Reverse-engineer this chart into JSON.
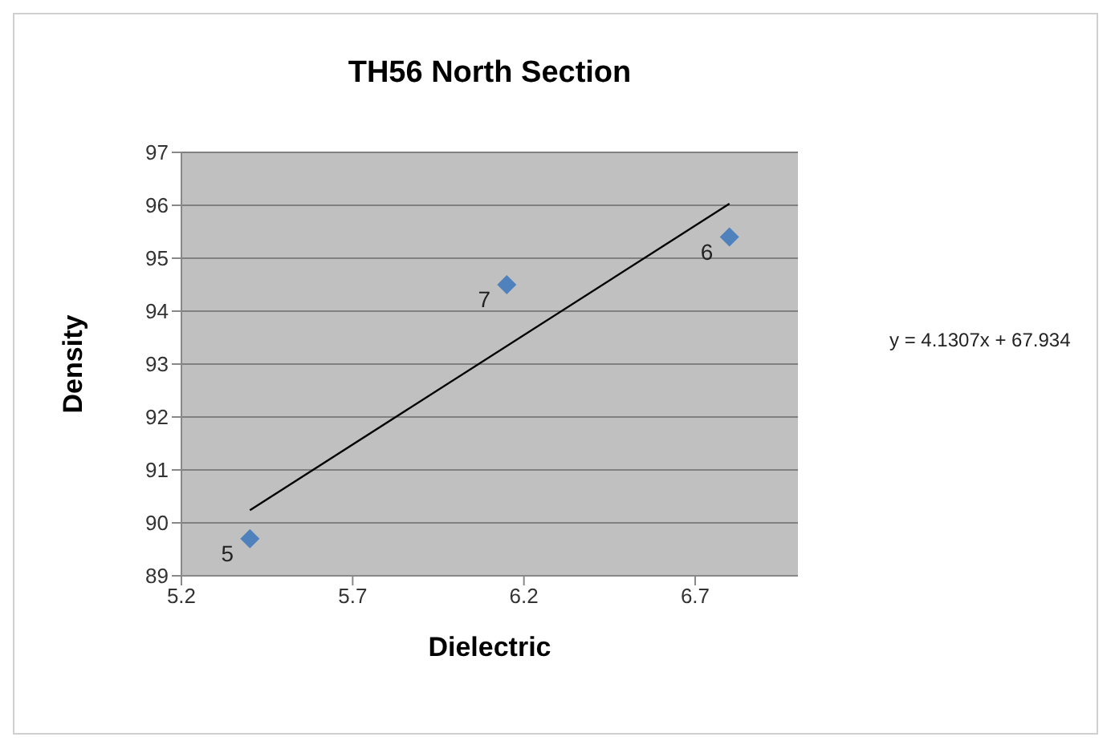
{
  "chart_data": {
    "type": "scatter",
    "title": "TH56 North Section",
    "xlabel": "Dielectric",
    "ylabel": "Density",
    "series": [
      {
        "color": "#4f81bd",
        "x": [
          5.4,
          6.15,
          6.8
        ],
        "values": [
          89.7,
          94.5,
          95.4
        ],
        "marker": "diamond"
      },
      {
        "type": "line",
        "color": "#000000",
        "x": [
          5.4,
          6.8
        ],
        "values": [
          90.24,
          96.03
        ],
        "marker": "none"
      }
    ],
    "xlim": [
      5.2,
      7.0
    ],
    "xticks": [
      5.2,
      5.7,
      6.2,
      6.7
    ],
    "ylim": [
      89,
      97
    ],
    "yticks": [
      89,
      90,
      91,
      92,
      93,
      94,
      95,
      96,
      97
    ],
    "grid": "y",
    "annotations": [
      {
        "text": "5",
        "x": 5.4,
        "y": 89.7
      },
      {
        "text": "7",
        "x": 6.15,
        "y": 94.5
      },
      {
        "text": "6",
        "x": 6.8,
        "y": 95.4
      },
      "y = 4.1307x + 67.934"
    ]
  }
}
